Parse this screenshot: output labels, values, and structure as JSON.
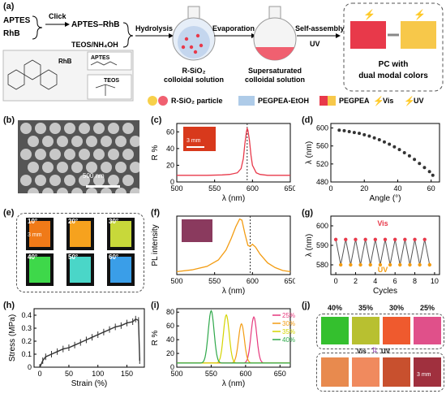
{
  "panel_letters": {
    "a": "(a)",
    "b": "(b)",
    "c": "(c)",
    "d": "(d)",
    "e": "(e)",
    "f": "(f)",
    "g": "(g)",
    "h": "(h)",
    "i": "(i)",
    "j": "(j)"
  },
  "scheme": {
    "aptes": "APTES",
    "rhb": "RhB",
    "click": "Click",
    "apt_rhb": "APTES–RhB",
    "teos_nh4oh": "TEOS/NH₄OH",
    "hydrolysis": "Hydrolysis",
    "evaporation": "Evaporation",
    "self_assembly": "Self-assembly",
    "uv": "UV",
    "r_sio2_l1": "R-SiO₂",
    "r_sio2_l2": "colloidal solution",
    "super_l1": "Supersaturated",
    "super_l2": "colloidal solution",
    "pc_l1": "PC with",
    "pc_l2": "dual modal colors",
    "struct_rhb": "RhB",
    "struct_aptes": "APTES",
    "struct_teos": "TEOS",
    "legend_particle": "R-SiO₂ particle",
    "legend_pegpea_etoh": "PEGPEA-EtOH",
    "legend_pegpea": "PEGPEA",
    "legend_vis": "Vis",
    "legend_uv": "UV"
  },
  "sem": {
    "scalebar": "500 nm"
  },
  "colors": {
    "red": "#e8394a",
    "orange": "#f39c12",
    "dark": "#333333",
    "green": "#2ea84a",
    "yellow": "#d4d400",
    "pink": "#e6397d",
    "pegpea_blue": "#aecbe8"
  },
  "panel_c": {
    "inset_scale": "3 mm",
    "chart_data": {
      "type": "line",
      "xlabel": "λ (nm)",
      "ylabel": "R %",
      "xlim": [
        500,
        650
      ],
      "ylim": [
        0,
        70
      ],
      "xticks": [
        500,
        550,
        600,
        650
      ],
      "yticks": [
        0,
        20,
        40,
        60
      ],
      "peak": 593,
      "series": [
        {
          "x": [
            500,
            520,
            540,
            560,
            570,
            580,
            585,
            588,
            590,
            592,
            593,
            594,
            596,
            598,
            600,
            605,
            610,
            620,
            630,
            640,
            650
          ],
          "y": [
            8,
            8,
            8,
            8.5,
            9,
            11,
            16,
            28,
            46,
            60,
            64,
            62,
            50,
            32,
            20,
            11,
            9,
            8,
            8,
            8,
            8
          ]
        }
      ]
    }
  },
  "panel_d": {
    "chart_data": {
      "type": "scatter",
      "xlabel": "Angle (°)",
      "ylabel": "λ (nm)",
      "xlim": [
        0,
        65
      ],
      "ylim": [
        480,
        610
      ],
      "xticks": [
        0,
        20,
        40,
        60
      ],
      "yticks": [
        480,
        520,
        560,
        600
      ],
      "x": [
        5,
        8,
        11,
        14,
        17,
        20,
        23,
        26,
        29,
        32,
        35,
        38,
        41,
        44,
        47,
        50,
        53,
        56,
        59,
        61
      ],
      "y": [
        595,
        594,
        592,
        590,
        588,
        585,
        582,
        578,
        574,
        569,
        564,
        558,
        552,
        545,
        538,
        530,
        521,
        512,
        503,
        495
      ]
    }
  },
  "panel_e": {
    "angles": [
      "10°",
      "20°",
      "30°",
      "40°",
      "50°",
      "60°"
    ],
    "tile_colors": [
      "#f07a18",
      "#f6a21e",
      "#c8d83a",
      "#3ed84a",
      "#4ad6c8",
      "#3a9ee8"
    ],
    "scale": "3 mm"
  },
  "panel_f": {
    "chart_data": {
      "type": "line",
      "xlabel": "λ (nm)",
      "ylabel": "PL intensity",
      "xlim": [
        500,
        650
      ],
      "ylim": [
        0,
        1
      ],
      "xticks": [
        500,
        550,
        600,
        650
      ],
      "peak": 597,
      "series": [
        {
          "x": [
            500,
            520,
            540,
            555,
            565,
            572,
            578,
            583,
            586,
            590,
            594,
            597,
            600,
            604,
            610,
            620,
            630,
            640,
            650
          ],
          "y": [
            0.05,
            0.08,
            0.14,
            0.25,
            0.42,
            0.62,
            0.82,
            0.95,
            0.93,
            0.7,
            0.5,
            0.48,
            0.52,
            0.47,
            0.35,
            0.2,
            0.12,
            0.07,
            0.05
          ]
        }
      ]
    }
  },
  "panel_g": {
    "vis_label": "Vis",
    "uv_label": "UV",
    "chart_data": {
      "type": "line",
      "xlabel": "Cycles",
      "ylabel": "λ (nm)",
      "xlim": [
        -0.5,
        10.5
      ],
      "ylim": [
        575,
        605
      ],
      "xticks": [
        0,
        2,
        4,
        6,
        8,
        10
      ],
      "yticks": [
        580,
        590,
        600
      ],
      "vis_values": [
        593,
        593,
        593,
        593,
        593,
        593,
        593,
        593,
        593,
        593
      ],
      "uv_values": [
        580,
        580,
        580,
        580,
        580,
        580,
        580,
        580,
        580,
        580
      ]
    }
  },
  "panel_h": {
    "chart_data": {
      "type": "line",
      "xlabel": "Strain (%)",
      "ylabel": "Stress (MPa)",
      "xlim": [
        -10,
        180
      ],
      "ylim": [
        0,
        0.45
      ],
      "xticks": [
        0,
        50,
        100,
        150
      ],
      "yticks": [
        0.0,
        0.1,
        0.2,
        0.3,
        0.4
      ],
      "series": [
        {
          "x": [
            0,
            5,
            10,
            20,
            30,
            40,
            50,
            60,
            70,
            80,
            90,
            100,
            110,
            120,
            130,
            140,
            150,
            160,
            165,
            170,
            172
          ],
          "y": [
            0.0,
            0.05,
            0.08,
            0.1,
            0.12,
            0.14,
            0.15,
            0.17,
            0.19,
            0.21,
            0.23,
            0.25,
            0.27,
            0.29,
            0.31,
            0.32,
            0.34,
            0.35,
            0.37,
            0.36,
            0.05
          ]
        }
      ]
    }
  },
  "panel_i": {
    "chart_data": {
      "type": "line",
      "xlabel": "λ (nm)",
      "ylabel": "R %",
      "xlim": [
        500,
        665
      ],
      "ylim": [
        0,
        85
      ],
      "xticks": [
        500,
        550,
        600,
        650
      ],
      "yticks": [
        0,
        20,
        40,
        60,
        80
      ],
      "series": [
        {
          "name": "25%",
          "peak": 612,
          "height": 73
        },
        {
          "name": "30%",
          "peak": 594,
          "height": 63
        },
        {
          "name": "35%",
          "peak": 572,
          "height": 76
        },
        {
          "name": "40%",
          "peak": 550,
          "height": 82
        }
      ]
    }
  },
  "panel_j": {
    "percents": [
      "40%",
      "35%",
      "30%",
      "25%"
    ],
    "vis": "Vis",
    "uv": "UV",
    "vis_colors": [
      "#34c02e",
      "#b8c030",
      "#ef5a2e",
      "#e0508a"
    ],
    "uv_colors": [
      "#e88a4e",
      "#f08a5e",
      "#c8502e",
      "#a0303e"
    ],
    "scale": "3 mm"
  }
}
